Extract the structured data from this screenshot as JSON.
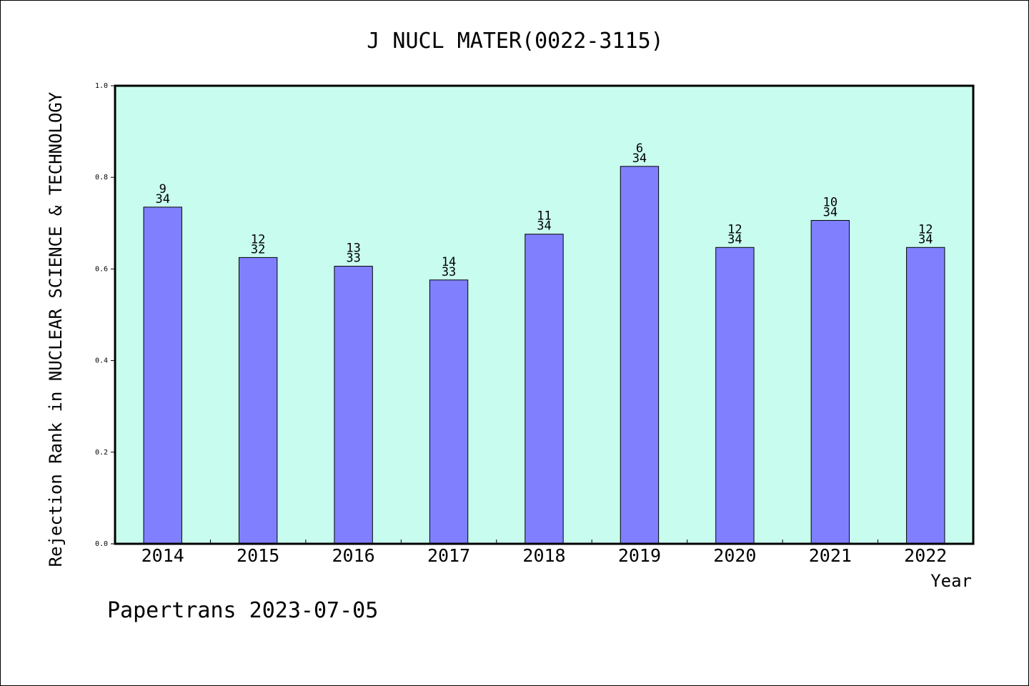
{
  "chart_data": {
    "type": "bar",
    "title": "J NUCL MATER(0022-3115)",
    "xlabel": "Year",
    "ylabel": "Rejection Rank in NUCLEAR SCIENCE & TECHNOLOGY",
    "ylim": [
      0,
      1.0
    ],
    "yticks": [
      "0.0",
      "0.2",
      "0.4",
      "0.6",
      "0.8",
      "1.0"
    ],
    "categories": [
      "2014",
      "2015",
      "2016",
      "2017",
      "2018",
      "2019",
      "2020",
      "2021",
      "2022"
    ],
    "values": [
      0.735,
      0.625,
      0.606,
      0.576,
      0.676,
      0.824,
      0.647,
      0.706,
      0.647
    ],
    "rank_labels": [
      {
        "rank": "9",
        "total": "34"
      },
      {
        "rank": "12",
        "total": "32"
      },
      {
        "rank": "13",
        "total": "33"
      },
      {
        "rank": "14",
        "total": "33"
      },
      {
        "rank": "11",
        "total": "34"
      },
      {
        "rank": "6",
        "total": "34"
      },
      {
        "rank": "12",
        "total": "34"
      },
      {
        "rank": "10",
        "total": "34"
      },
      {
        "rank": "12",
        "total": "34"
      }
    ],
    "colors": {
      "plot_bg": "#c8fcee",
      "bar": "#8080ff"
    },
    "grid": false,
    "legend": "none"
  },
  "footer": {
    "watermark": "Papertrans 2023-07-05"
  }
}
